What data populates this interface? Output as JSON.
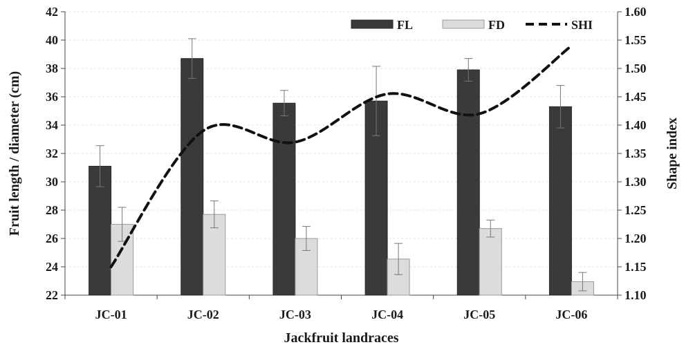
{
  "chart_data": {
    "type": "bar",
    "xlabel": "Jackfruit landraces",
    "ylabel": "Fruit length / diameter (cm)",
    "y2label": "Shape index",
    "categories": [
      "JC-01",
      "JC-02",
      "JC-03",
      "JC-04",
      "JC-05",
      "JC-06"
    ],
    "ylim": [
      22,
      42
    ],
    "yticks": [
      "22",
      "24",
      "26",
      "28",
      "30",
      "32",
      "34",
      "36",
      "38",
      "40",
      "42"
    ],
    "y2lim": [
      1.1,
      1.6
    ],
    "y2ticks": [
      "1.10",
      "1.15",
      "1.20",
      "1.25",
      "1.30",
      "1.35",
      "1.40",
      "1.45",
      "1.50",
      "1.55",
      "1.60"
    ],
    "grid": true,
    "legend_position": "top-right",
    "series": [
      {
        "name": "FL",
        "kind": "bar",
        "axis": "left",
        "color": "#3a3a3a",
        "values": [
          31.1,
          38.7,
          35.55,
          35.7,
          37.9,
          35.3
        ],
        "errors": [
          1.45,
          1.4,
          0.9,
          2.45,
          0.8,
          1.5
        ]
      },
      {
        "name": "FD",
        "kind": "bar",
        "axis": "left",
        "color": "#dcdcdc",
        "values": [
          27.0,
          27.7,
          26.0,
          24.55,
          26.7,
          22.95
        ],
        "errors": [
          1.2,
          0.95,
          0.85,
          1.1,
          0.6,
          0.65
        ]
      },
      {
        "name": "SHI",
        "kind": "line",
        "axis": "right",
        "color": "#111111",
        "dashed": true,
        "values": [
          1.15,
          1.39,
          1.37,
          1.455,
          1.42,
          1.54
        ]
      }
    ]
  }
}
